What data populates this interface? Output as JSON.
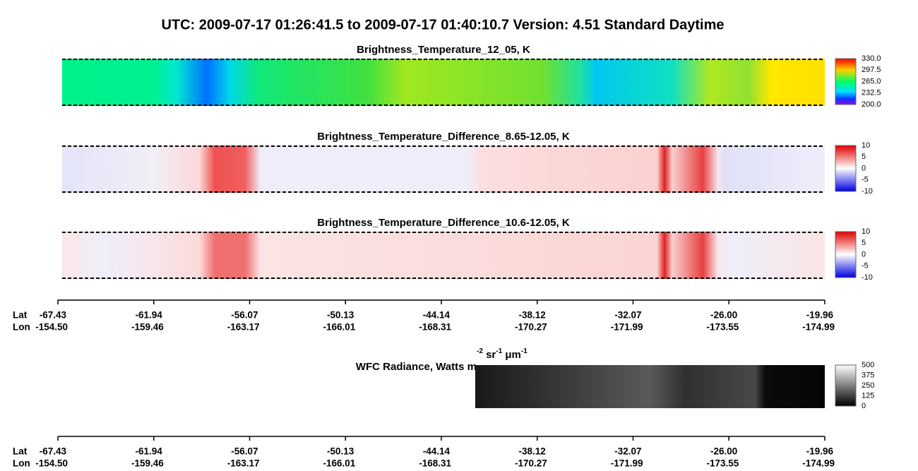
{
  "header": {
    "title": "UTC:  2009-07-17   01:26:41.5  to  2009-07-17   01:40:10.7    Version: 4.51  Standard Daytime"
  },
  "panels": [
    {
      "title": "Brightness_Temperature_12_05, K",
      "colorbar": [
        "330.0",
        "297.5",
        "265.0",
        "232.5",
        "200.0"
      ]
    },
    {
      "title": "Brightness_Temperature_Difference_8.65-12.05, K",
      "colorbar": [
        "10",
        "5",
        "0",
        "-5",
        "-10"
      ]
    },
    {
      "title": "Brightness_Temperature_Difference_10.6-12.05, K",
      "colorbar": [
        "10",
        "5",
        "0",
        "-5",
        "-10"
      ]
    }
  ],
  "wfc": {
    "title": "WFC Radiance, Watts m",
    "sup1": "-2",
    "unit2": " sr",
    "sup2": "-1",
    "unit3": " μm",
    "sup3": "-1",
    "colorbar": [
      "500",
      "375",
      "250",
      "125",
      "0"
    ]
  },
  "axes": [
    {
      "lat_label": "Lat",
      "lon_label": "Lon",
      "lat": [
        "-67.43",
        "-61.94",
        "-56.07",
        "-50.13",
        "-44.14",
        "-38.12",
        "-32.07",
        "-26.00",
        "-19.96"
      ],
      "lon": [
        "-154.50",
        "-159.46",
        "-163.17",
        "-166.01",
        "-168.31",
        "-170.27",
        "-171.99",
        "-173.55",
        "-174.99"
      ]
    },
    {
      "lat_label": "Lat",
      "lon_label": "Lon",
      "lat": [
        "-67.43",
        "-61.94",
        "-56.07",
        "-50.13",
        "-44.14",
        "-38.12",
        "-32.07",
        "-26.00",
        "-19.96"
      ],
      "lon": [
        "-154.50",
        "-159.46",
        "-163.17",
        "-166.01",
        "-168.31",
        "-170.27",
        "-171.99",
        "-173.55",
        "-174.99"
      ]
    }
  ]
}
